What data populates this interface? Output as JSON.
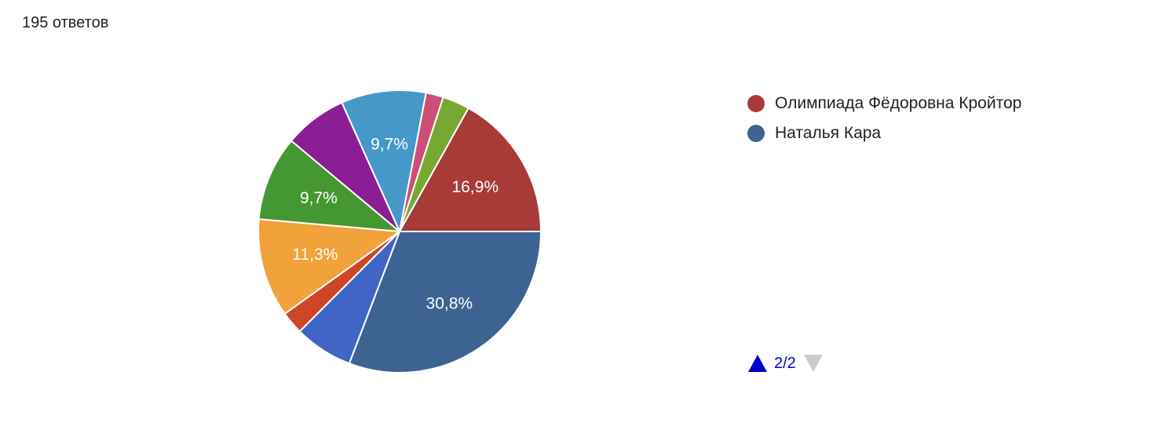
{
  "summary": {
    "responses_label": "195 ответов"
  },
  "chart_data": {
    "type": "pie",
    "total_responses": 195,
    "slices": [
      {
        "name": "Наталья Кара",
        "value": 30.8,
        "label": "30,8%",
        "color": "#3d6392"
      },
      {
        "name": "",
        "value": 6.7,
        "label": "",
        "color": "#4065c4"
      },
      {
        "name": "",
        "value": 2.6,
        "label": "",
        "color": "#cf4527"
      },
      {
        "name": "",
        "value": 11.3,
        "label": "11,3%",
        "color": "#f2a23b"
      },
      {
        "name": "",
        "value": 9.7,
        "label": "9,7%",
        "color": "#459731"
      },
      {
        "name": "",
        "value": 7.2,
        "label": "",
        "color": "#8b1d95"
      },
      {
        "name": "",
        "value": 9.7,
        "label": "9,7%",
        "color": "#4598c7"
      },
      {
        "name": "",
        "value": 2.0,
        "label": "",
        "color": "#cd4f77"
      },
      {
        "name": "",
        "value": 3.1,
        "label": "",
        "color": "#76a934"
      },
      {
        "name": "Олимпиада Фёдоровна Кройтор",
        "value": 16.9,
        "label": "16,9%",
        "color": "#a83a37"
      }
    ],
    "legend": {
      "placement": "right",
      "entries": [
        {
          "label": "Олимпиада Фёдоровна Кройтор",
          "color": "#a83a37"
        },
        {
          "label": "Наталья Кара",
          "color": "#3d6392"
        }
      ]
    }
  },
  "pager": {
    "text": "2/2",
    "up_color": "#0000cc",
    "down_color": "#cccccc"
  }
}
